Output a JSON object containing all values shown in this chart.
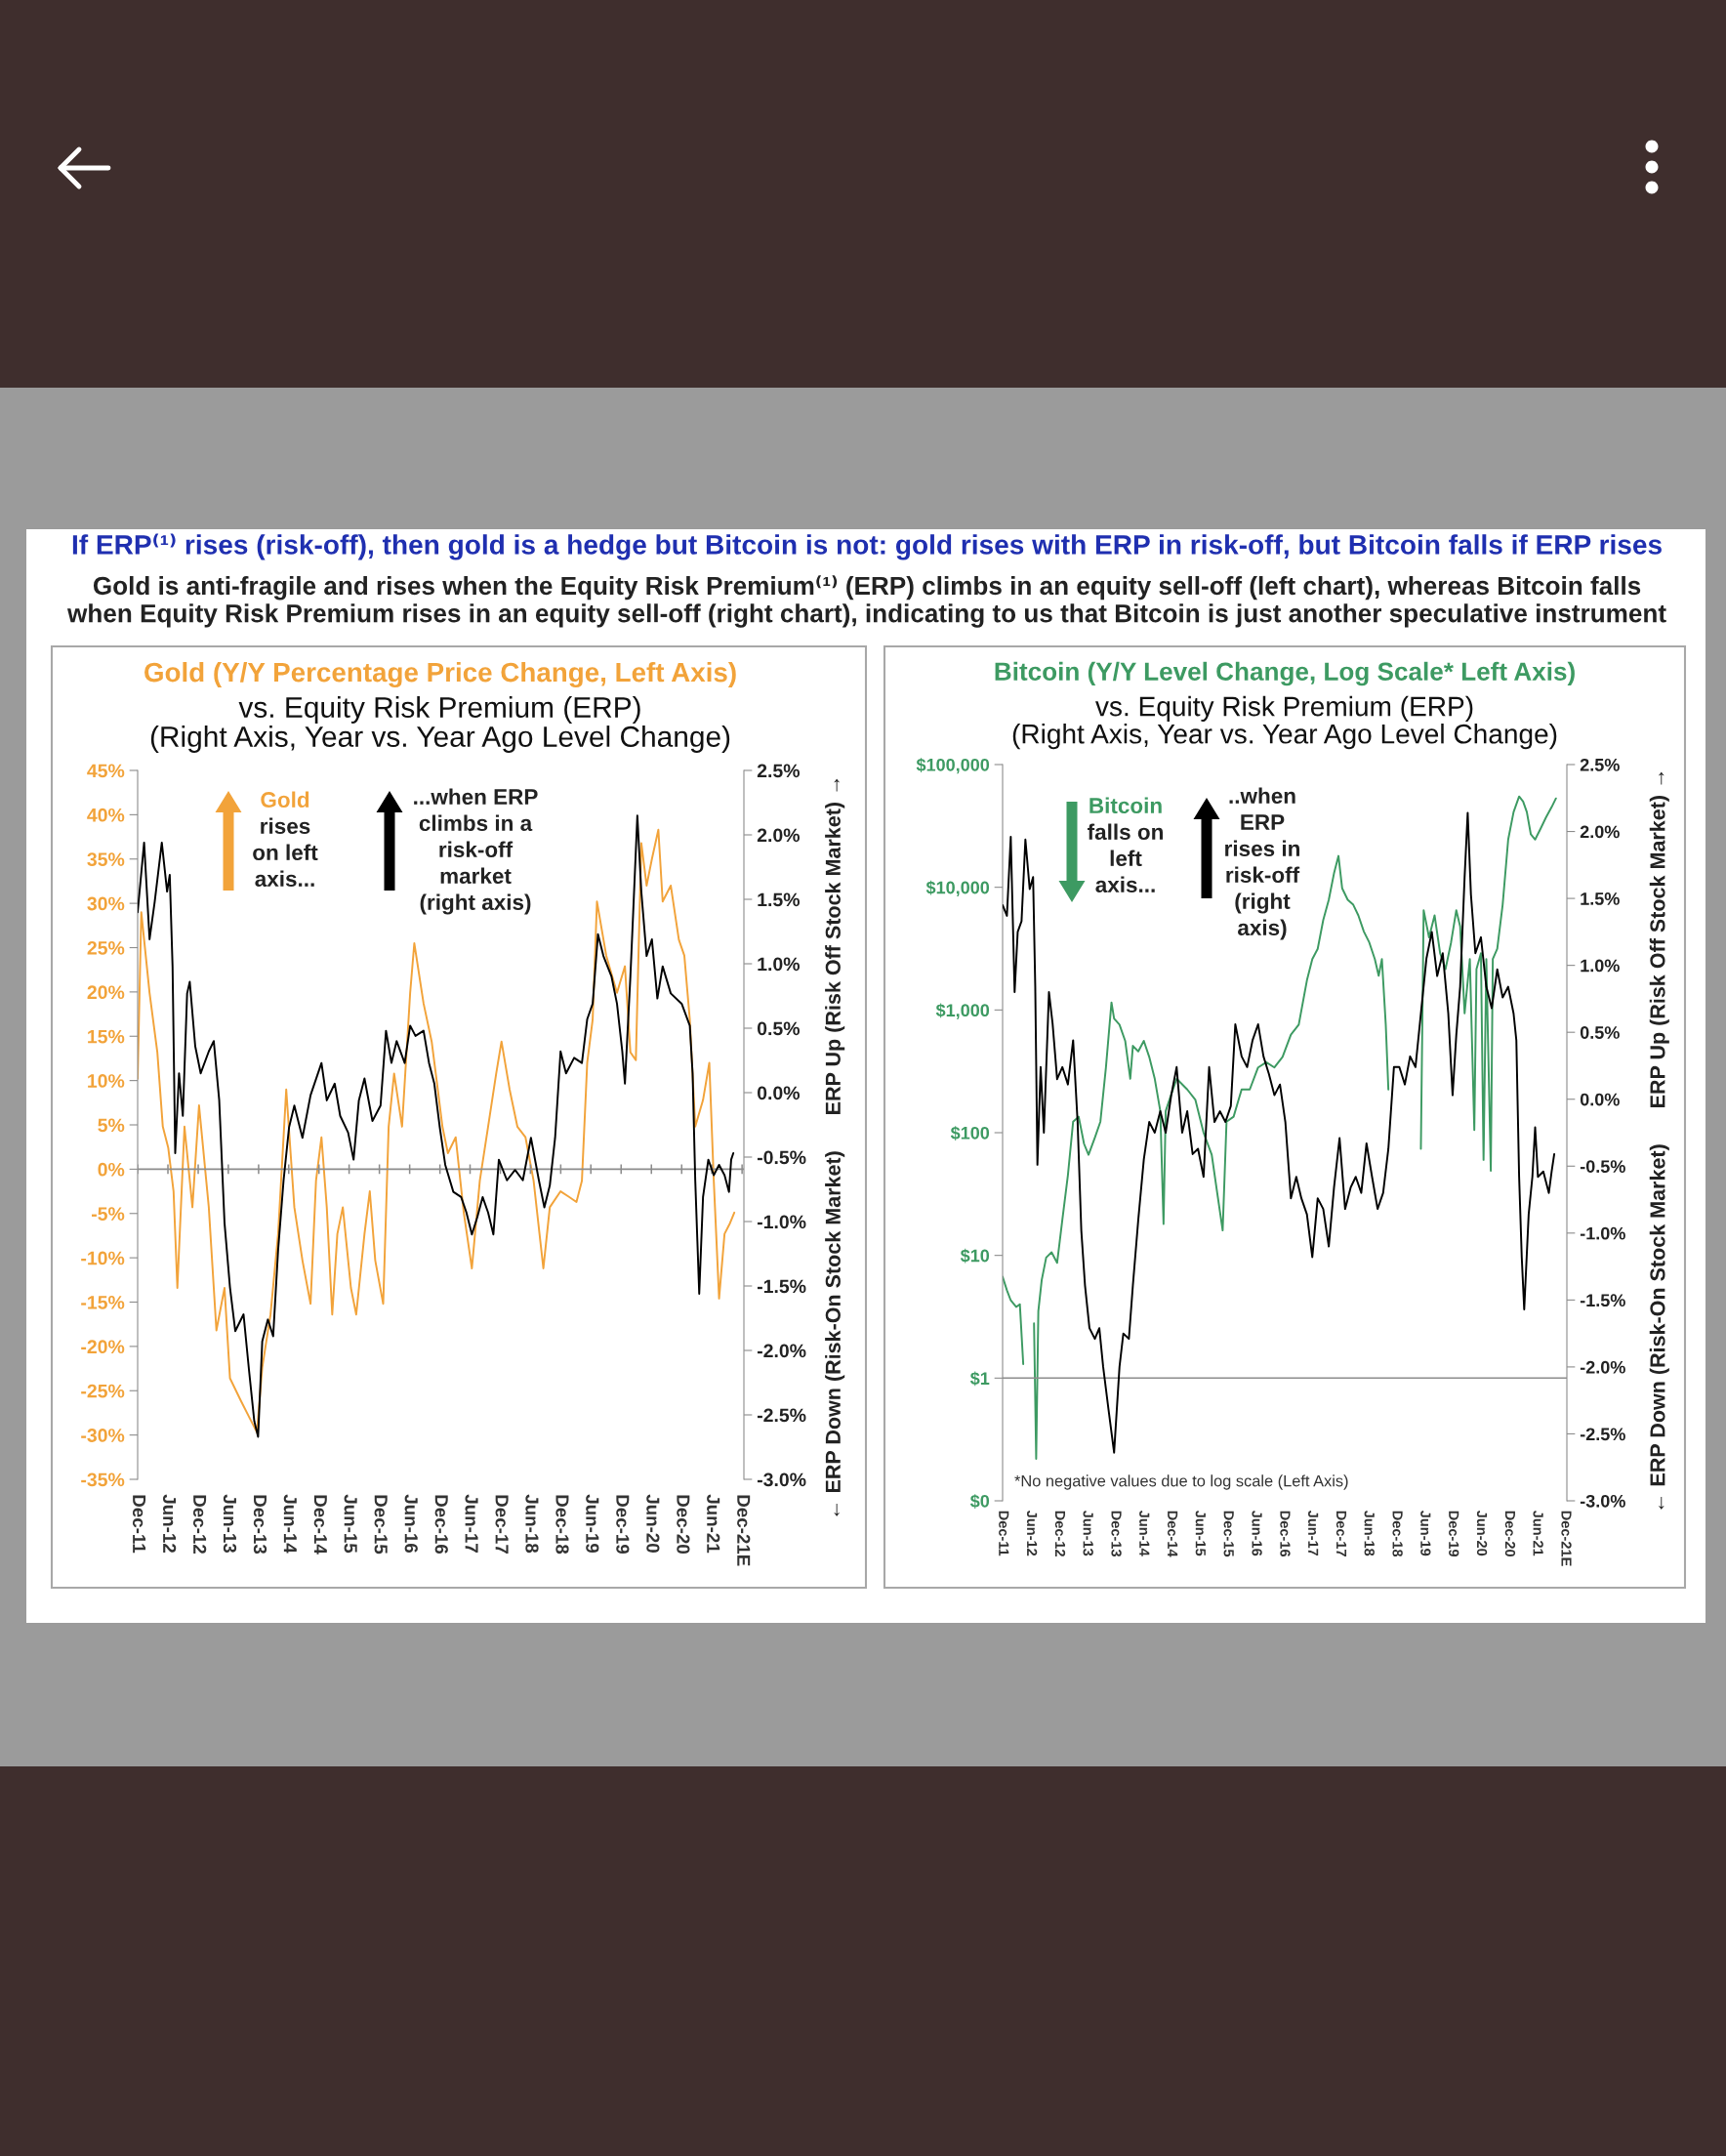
{
  "chart_data": [
    {
      "type": "other",
      "title": "If ERP⁽¹⁾ rises (risk-off), then gold is a hedge but Bitcoin is not: gold rises with ERP in risk-off, but Bitcoin falls if ERP rises",
      "subtitle": "Gold is anti-fragile and rises when the Equity Risk Premium⁽¹⁾ (ERP) climbs in an equity sell-off (left chart), whereas Bitcoin falls\nwhen Equity Risk Premium rises in an equity sell-off (right chart), indicating to us that Bitcoin is just another speculative instrument"
    },
    {
      "type": "line",
      "title": "Gold (Y/Y Percentage Price Change, Left Axis)",
      "subtitle": "vs. Equity Risk Premium (ERP)\n(Right Axis, Year vs. Year Ago Level Change)",
      "y2label": "← ERP Down (Risk-On Stock Market)      ERP Up (Risk Off Stock Market) →",
      "xlim": [
        "2011-12-01",
        "2021-12-12"
      ],
      "xticks": [
        {
          "value": "2011-12",
          "label": "Dec-11"
        },
        {
          "value": "2012-06",
          "label": "Jun-12"
        },
        {
          "value": "2012-12",
          "label": "Dec-12"
        },
        {
          "value": "2013-06",
          "label": "Jun-13"
        },
        {
          "value": "2013-12",
          "label": "Dec-13"
        },
        {
          "value": "2014-06",
          "label": "Jun-14"
        },
        {
          "value": "2014-12",
          "label": "Dec-14"
        },
        {
          "value": "2015-06",
          "label": "Jun-15"
        },
        {
          "value": "2015-12",
          "label": "Dec-15"
        },
        {
          "value": "2016-06",
          "label": "Jun-16"
        },
        {
          "value": "2016-12",
          "label": "Dec-16"
        },
        {
          "value": "2017-06",
          "label": "Jun-17"
        },
        {
          "value": "2017-12",
          "label": "Dec-17"
        },
        {
          "value": "2018-06",
          "label": "Jun-18"
        },
        {
          "value": "2018-12",
          "label": "Dec-18"
        },
        {
          "value": "2019-06",
          "label": "Jun-19"
        },
        {
          "value": "2019-12",
          "label": "Dec-19"
        },
        {
          "value": "2020-06",
          "label": "Jun-20"
        },
        {
          "value": "2020-12",
          "label": "Dec-20"
        },
        {
          "value": "2021-06",
          "label": "Jun-21"
        },
        {
          "value": "2021-12",
          "label": "Dec-21E"
        }
      ],
      "ylim": [
        -35,
        45
      ],
      "yticks": [
        {
          "value": 45,
          "label": "45%"
        },
        {
          "value": 40,
          "label": "40%"
        },
        {
          "value": 35,
          "label": "35%"
        },
        {
          "value": 30,
          "label": "30%"
        },
        {
          "value": 25,
          "label": "25%"
        },
        {
          "value": 20,
          "label": "20%"
        },
        {
          "value": 15,
          "label": "15%"
        },
        {
          "value": 10,
          "label": "10%"
        },
        {
          "value": 5,
          "label": "5%"
        },
        {
          "value": 0,
          "label": "0%"
        },
        {
          "value": -5,
          "label": "-5%"
        },
        {
          "value": -10,
          "label": "-10%"
        },
        {
          "value": -15,
          "label": "-15%"
        },
        {
          "value": -20,
          "label": "-20%"
        },
        {
          "value": -25,
          "label": "-25%"
        },
        {
          "value": -30,
          "label": "-30%"
        },
        {
          "value": -35,
          "label": "-35%"
        }
      ],
      "y2lim": [
        -3.0,
        2.5
      ],
      "y2ticks": [
        {
          "value": 2.5,
          "label": "2.5%"
        },
        {
          "value": 2.0,
          "label": "2.0%"
        },
        {
          "value": 1.5,
          "label": "1.5%"
        },
        {
          "value": 1.0,
          "label": "1.0%"
        },
        {
          "value": 0.5,
          "label": "0.5%"
        },
        {
          "value": 0.0,
          "label": "0.0%"
        },
        {
          "value": -0.5,
          "label": "-0.5%"
        },
        {
          "value": -1.0,
          "label": "-1.0%"
        },
        {
          "value": -1.5,
          "label": "-1.5%"
        },
        {
          "value": -2.0,
          "label": "-2.0%"
        },
        {
          "value": -2.5,
          "label": "-2.5%"
        },
        {
          "value": -3.0,
          "label": "-3.0%"
        }
      ],
      "ref_lines": [
        {
          "axis": "y",
          "value": 0,
          "color": "#8c8c8c"
        }
      ],
      "annotations": [
        "Gold\nrises\non left\naxis...",
        "...when ERP\nclimbs in a\nrisk-off\nmarket\n(right axis)"
      ],
      "series": [
        {
          "color": "#f2a33a",
          "x": [
            "2011-12-01",
            "2011-12-23",
            "2012-02-11",
            "2012-03-29",
            "2012-05-01",
            "2012-06-03",
            "2012-07-05",
            "2012-07-28",
            "2012-09-09",
            "2012-10-27",
            "2012-12-06",
            "2013-02-03",
            "2013-03-21",
            "2013-05-09",
            "2013-06-11",
            "2013-08-15",
            "2013-10-03",
            "2013-11-21",
            "2013-12-23",
            "2014-02-11",
            "2014-03-29",
            "2014-05-17",
            "2014-07-05",
            "2014-08-23",
            "2014-10-11",
            "2014-11-13",
            "2014-12-16",
            "2015-01-17",
            "2015-02-19",
            "2015-03-22",
            "2015-04-24",
            "2015-06-12",
            "2015-07-14",
            "2015-09-02",
            "2015-10-04",
            "2015-11-06",
            "2015-12-24",
            "2016-01-26",
            "2016-02-28",
            "2016-04-16",
            "2016-06-04",
            "2016-06-29",
            "2016-08-24",
            "2016-10-12",
            "2016-11-14",
            "2016-12-16",
            "2017-01-18",
            "2017-03-06",
            "2017-04-24",
            "2017-06-12",
            "2017-07-30",
            "2017-09-18",
            "2017-11-06",
            "2017-12-08",
            "2018-01-26",
            "2018-03-14",
            "2018-05-02",
            "2018-06-20",
            "2018-08-18",
            "2018-09-26",
            "2018-11-30",
            "2019-01-18",
            "2019-03-06",
            "2019-04-08",
            "2019-05-10",
            "2019-06-12",
            "2019-07-08",
            "2019-09-02",
            "2019-11-06",
            "2019-12-24",
            "2020-01-26",
            "2020-02-28",
            "2020-04-01",
            "2020-05-03",
            "2020-06-04",
            "2020-07-13",
            "2020-08-08",
            "2020-09-26",
            "2020-11-14",
            "2020-12-17",
            "2021-01-19",
            "2021-02-21",
            "2021-04-09",
            "2021-05-17",
            "2021-06-13",
            "2021-07-15",
            "2021-08-17",
            "2021-09-19",
            "2021-10-15"
          ],
          "values": [
            10.2,
            29.0,
            19.9,
            13.2,
            4.8,
            2.4,
            -2.5,
            -13.4,
            4.8,
            -4.3,
            7.2,
            -4.3,
            -18.2,
            -13.4,
            -23.6,
            -26.1,
            -27.9,
            -29.7,
            -22.4,
            -16.4,
            -7.3,
            9.0,
            -4.3,
            -10.3,
            -15.2,
            -1.3,
            3.6,
            -4.3,
            -16.4,
            -7.3,
            -4.3,
            -13.4,
            -16.4,
            -7.3,
            -2.5,
            -10.3,
            -15.2,
            4.8,
            10.8,
            4.8,
            19.9,
            25.5,
            18.7,
            14.4,
            9.6,
            4.8,
            1.8,
            3.6,
            -4.9,
            -11.2,
            -1.3,
            4.8,
            10.8,
            14.4,
            9.0,
            4.8,
            3.6,
            -1.3,
            -11.2,
            -4.3,
            -2.5,
            -3.1,
            -3.7,
            -1.3,
            12.0,
            16.9,
            30.2,
            24.1,
            19.9,
            22.9,
            13.2,
            12.3,
            36.8,
            32.0,
            35.0,
            38.3,
            30.2,
            32.0,
            25.9,
            24.1,
            16.9,
            4.8,
            7.8,
            12.0,
            -1.3,
            -14.6,
            -7.3,
            -6.1,
            -4.9
          ]
        },
        {
          "color": "#000000",
          "axis": "y2",
          "x": [
            "2011-12-01",
            "2012-01-09",
            "2012-02-11",
            "2012-03-13",
            "2012-04-25",
            "2012-05-27",
            "2012-06-12",
            "2012-06-29",
            "2012-07-15",
            "2012-08-07",
            "2012-08-30",
            "2012-09-25",
            "2012-10-11",
            "2012-11-13",
            "2012-12-16",
            "2013-02-03",
            "2013-03-05",
            "2013-04-07",
            "2013-05-09",
            "2013-06-11",
            "2013-07-13",
            "2013-09-01",
            "2013-10-03",
            "2013-11-05",
            "2013-11-28",
            "2013-12-23",
            "2014-01-26",
            "2014-02-27",
            "2014-03-29",
            "2014-05-01",
            "2014-06-03",
            "2014-07-05",
            "2014-08-23",
            "2014-10-11",
            "2014-12-16",
            "2015-01-17",
            "2015-03-06",
            "2015-04-08",
            "2015-05-26",
            "2015-06-28",
            "2015-07-30",
            "2015-09-02",
            "2015-10-20",
            "2015-12-08",
            "2016-01-10",
            "2016-02-12",
            "2016-03-14",
            "2016-05-02",
            "2016-06-04",
            "2016-07-06",
            "2016-08-24",
            "2016-09-26",
            "2016-10-28",
            "2016-11-30",
            "2017-01-02",
            "2017-02-20",
            "2017-04-08",
            "2017-05-10",
            "2017-06-12",
            "2017-07-14",
            "2017-08-16",
            "2017-09-18",
            "2017-10-20",
            "2017-11-22",
            "2018-01-10",
            "2018-02-28",
            "2018-04-16",
            "2018-06-04",
            "2018-07-22",
            "2018-08-24",
            "2018-09-26",
            "2018-10-28",
            "2018-11-30",
            "2019-01-02",
            "2019-02-20",
            "2019-04-08",
            "2019-05-10",
            "2019-06-12",
            "2019-07-14",
            "2019-08-16",
            "2019-10-04",
            "2019-11-06",
            "2019-12-08",
            "2019-12-24",
            "2020-01-26",
            "2020-02-12",
            "2020-03-08",
            "2020-04-01",
            "2020-05-03",
            "2020-06-04",
            "2020-07-07",
            "2020-08-08",
            "2020-09-26",
            "2020-12-01",
            "2021-01-19",
            "2021-02-05",
            "2021-02-21",
            "2021-03-17",
            "2021-04-09",
            "2021-05-11",
            "2021-06-13",
            "2021-07-15",
            "2021-08-17",
            "2021-09-13",
            "2021-09-26",
            "2021-10-09"
          ],
          "values": [
            1.4,
            1.94,
            1.19,
            1.48,
            1.94,
            1.56,
            1.69,
            0.98,
            -0.47,
            0.15,
            -0.18,
            0.77,
            0.86,
            0.36,
            0.15,
            0.32,
            0.4,
            -0.06,
            -1.01,
            -1.51,
            -1.85,
            -1.72,
            -2.14,
            -2.55,
            -2.67,
            -1.93,
            -1.76,
            -1.89,
            -1.22,
            -0.68,
            -0.27,
            -0.1,
            -0.35,
            -0.02,
            0.23,
            -0.06,
            0.07,
            -0.18,
            -0.31,
            -0.52,
            -0.06,
            0.11,
            -0.22,
            -0.1,
            0.48,
            0.23,
            0.4,
            0.23,
            0.52,
            0.44,
            0.48,
            0.23,
            0.07,
            -0.27,
            -0.56,
            -0.77,
            -0.81,
            -0.93,
            -1.1,
            -0.97,
            -0.81,
            -0.93,
            -1.1,
            -0.52,
            -0.68,
            -0.6,
            -0.68,
            -0.35,
            -0.68,
            -0.89,
            -0.72,
            -0.35,
            0.32,
            0.15,
            0.27,
            0.23,
            0.57,
            0.69,
            1.23,
            1.06,
            0.9,
            0.69,
            0.32,
            0.07,
            0.9,
            1.4,
            2.15,
            1.56,
            1.06,
            1.19,
            0.73,
            0.98,
            0.77,
            0.69,
            0.52,
            0.15,
            -0.68,
            -1.56,
            -0.81,
            -0.52,
            -0.64,
            -0.56,
            -0.64,
            -0.77,
            -0.52,
            -0.47
          ]
        }
      ]
    },
    {
      "type": "line",
      "title": "Bitcoin (Y/Y Level Change, Log Scale* Left Axis)",
      "subtitle": "vs. Equity Risk Premium (ERP)\n(Right Axis, Year vs. Year Ago Level Change)",
      "y2label": "← ERP Down (Risk-On Stock Market)      ERP Up (Risk Off Stock Market) →",
      "log": "y",
      "xlim": [
        "2011-12-01",
        "2021-12-12"
      ],
      "xticks": [
        {
          "value": "2011-12",
          "label": "Dec-11"
        },
        {
          "value": "2012-06",
          "label": "Jun-12"
        },
        {
          "value": "2012-12",
          "label": "Dec-12"
        },
        {
          "value": "2013-06",
          "label": "Jun-13"
        },
        {
          "value": "2013-12",
          "label": "Dec-13"
        },
        {
          "value": "2014-06",
          "label": "Jun-14"
        },
        {
          "value": "2014-12",
          "label": "Dec-14"
        },
        {
          "value": "2015-06",
          "label": "Jun-15"
        },
        {
          "value": "2015-12",
          "label": "Dec-15"
        },
        {
          "value": "2016-06",
          "label": "Jun-16"
        },
        {
          "value": "2016-12",
          "label": "Dec-16"
        },
        {
          "value": "2017-06",
          "label": "Jun-17"
        },
        {
          "value": "2017-12",
          "label": "Dec-17"
        },
        {
          "value": "2018-06",
          "label": "Jun-18"
        },
        {
          "value": "2018-12",
          "label": "Dec-18"
        },
        {
          "value": "2019-06",
          "label": "Jun-19"
        },
        {
          "value": "2019-12",
          "label": "Dec-19"
        },
        {
          "value": "2020-06",
          "label": "Jun-20"
        },
        {
          "value": "2020-12",
          "label": "Dec-20"
        },
        {
          "value": "2021-06",
          "label": "Jun-21"
        },
        {
          "value": "2021-12",
          "label": "Dec-21E"
        }
      ],
      "ylim": [
        0.1,
        100000
      ],
      "yticks": [
        {
          "value": 0.1,
          "label": "$0"
        },
        {
          "value": 1,
          "label": "$1"
        },
        {
          "value": 10,
          "label": "$10"
        },
        {
          "value": 100,
          "label": "$100"
        },
        {
          "value": 1000,
          "label": "$1,000"
        },
        {
          "value": 10000,
          "label": "$10,000"
        },
        {
          "value": 100000,
          "label": "$100,000"
        }
      ],
      "y2lim": [
        -3.0,
        2.5
      ],
      "y2ticks": [
        {
          "value": 2.5,
          "label": "2.5%"
        },
        {
          "value": 2.0,
          "label": "2.0%"
        },
        {
          "value": 1.5,
          "label": "1.5%"
        },
        {
          "value": 1.0,
          "label": "1.0%"
        },
        {
          "value": 0.5,
          "label": "0.5%"
        },
        {
          "value": 0.0,
          "label": "0.0%"
        },
        {
          "value": -0.5,
          "label": "-0.5%"
        },
        {
          "value": -1.0,
          "label": "-1.0%"
        },
        {
          "value": -1.5,
          "label": "-1.5%"
        },
        {
          "value": -2.0,
          "label": "-2.0%"
        },
        {
          "value": -2.5,
          "label": "-2.5%"
        },
        {
          "value": -3.0,
          "label": "-3.0%"
        }
      ],
      "ref_lines": [
        {
          "axis": "y",
          "value": 1,
          "color": "#8c8c8c"
        }
      ],
      "annotations": [
        "Bitcoin\nfalls on\nleft\naxis...",
        "..when\nERP\nrises in\nrisk-off\n(right\naxis)",
        "*No negative values due to log scale (Left Axis)"
      ],
      "series": [
        {
          "color": "#000000",
          "axis": "y2",
          "x": [
            "2011-12-01",
            "2011-12-29",
            "2012-01-23",
            "2012-02-17",
            "2012-03-08",
            "2012-04-02",
            "2012-04-27",
            "2012-05-25",
            "2012-06-16",
            "2012-06-30",
            "2012-07-14",
            "2012-08-04",
            "2012-08-25",
            "2012-09-27",
            "2012-10-21",
            "2012-11-19",
            "2012-12-23",
            "2013-01-28",
            "2013-03-03",
            "2013-04-01",
            "2013-04-25",
            "2013-05-19",
            "2013-06-17",
            "2013-07-22",
            "2013-08-20",
            "2013-09-14",
            "2013-10-19",
            "2013-11-24",
            "2013-12-29",
            "2014-01-23",
            "2014-02-28",
            "2014-03-26",
            "2014-04-30",
            "2014-06-05",
            "2014-07-10",
            "2014-08-15",
            "2014-09-20",
            "2014-10-25",
            "2014-11-30",
            "2015-01-04",
            "2015-02-09",
            "2015-03-14",
            "2015-04-18",
            "2015-05-23",
            "2015-06-28",
            "2015-08-03",
            "2015-09-07",
            "2015-10-12",
            "2015-11-17",
            "2015-12-22",
            "2016-01-20",
            "2016-03-01",
            "2016-04-06",
            "2016-05-11",
            "2016-06-16",
            "2016-07-21",
            "2016-08-25",
            "2016-09-30",
            "2016-11-05",
            "2016-12-10",
            "2017-01-15",
            "2017-02-19",
            "2017-03-24",
            "2017-04-29",
            "2017-06-03",
            "2017-07-08",
            "2017-08-13",
            "2017-09-18",
            "2017-10-22",
            "2017-11-27",
            "2018-01-02",
            "2018-02-07",
            "2018-03-12",
            "2018-04-17",
            "2018-05-21",
            "2018-06-26",
            "2018-08-01",
            "2018-09-06",
            "2018-10-10",
            "2018-11-15",
            "2018-12-20",
            "2019-01-25",
            "2019-02-28",
            "2019-04-04",
            "2019-05-09",
            "2019-06-14",
            "2019-07-19",
            "2019-08-23",
            "2019-09-28",
            "2019-11-03",
            "2019-12-01",
            "2019-12-25",
            "2020-01-19",
            "2020-02-17",
            "2020-03-08",
            "2020-03-29",
            "2020-04-27",
            "2020-06-02",
            "2020-07-07",
            "2020-08-11",
            "2020-09-16",
            "2020-10-21",
            "2020-11-26",
            "2020-12-31",
            "2021-01-18",
            "2021-02-05",
            "2021-02-22",
            "2021-03-10",
            "2021-04-08",
            "2021-05-02",
            "2021-05-20",
            "2021-06-07",
            "2021-07-12",
            "2021-08-17",
            "2021-09-04",
            "2021-09-21"
          ],
          "values": [
            1.45,
            1.37,
            1.96,
            0.8,
            1.25,
            1.33,
            1.94,
            1.57,
            1.66,
            0.84,
            -0.49,
            0.24,
            -0.25,
            0.8,
            0.56,
            0.15,
            0.24,
            0.11,
            0.44,
            -0.17,
            -0.98,
            -1.39,
            -1.71,
            -1.79,
            -1.71,
            -2.0,
            -2.32,
            -2.64,
            -2.0,
            -1.75,
            -1.79,
            -1.39,
            -0.9,
            -0.45,
            -0.17,
            -0.25,
            -0.09,
            -0.25,
            0.03,
            0.24,
            -0.25,
            -0.09,
            -0.41,
            -0.37,
            -0.58,
            0.24,
            -0.17,
            -0.09,
            -0.17,
            -0.05,
            0.56,
            0.32,
            0.24,
            0.44,
            0.56,
            0.32,
            0.19,
            0.03,
            0.11,
            -0.17,
            -0.74,
            -0.58,
            -0.74,
            -0.86,
            -1.18,
            -0.74,
            -0.82,
            -1.1,
            -0.66,
            -0.29,
            -0.82,
            -0.66,
            -0.58,
            -0.7,
            -0.33,
            -0.58,
            -0.82,
            -0.7,
            -0.37,
            0.24,
            0.24,
            0.11,
            0.32,
            0.24,
            0.64,
            1.05,
            1.25,
            0.92,
            1.09,
            0.64,
            0.03,
            0.48,
            0.84,
            1.66,
            2.14,
            1.53,
            1.09,
            1.21,
            0.84,
            0.68,
            0.97,
            0.76,
            0.84,
            0.64,
            0.44,
            -0.58,
            -1.18,
            -1.57,
            -0.86,
            -0.58,
            -0.21,
            -0.58,
            -0.54,
            -0.7,
            -0.54,
            -0.41
          ]
        },
        {
          "color": "#3d9a62",
          "x": [
            "2011-12-01",
            "2011-12-29",
            "2012-01-23",
            "2012-02-27",
            "2012-03-22",
            "2012-04-13",
            "2012-05-10",
            "2012-06-22",
            "2012-07-06",
            "2012-07-20",
            "2012-08-11",
            "2012-09-09",
            "2012-10-14",
            "2012-11-19",
            "2012-12-23",
            "2013-01-28",
            "2013-03-03",
            "2013-04-08",
            "2013-05-13",
            "2013-06-11",
            "2013-07-22",
            "2013-08-27",
            "2013-10-02",
            "2013-11-07",
            "2013-11-24",
            "2013-12-29",
            "2014-02-04",
            "2014-03-09",
            "2014-03-26",
            "2014-04-30",
            "2014-06-05",
            "2014-07-10",
            "2014-08-15",
            "2014-09-20",
            "2014-10-11",
            "2014-10-25",
            "2014-11-30",
            "2015-01-04",
            "2015-03-14",
            "2015-05-06",
            "2015-06-28",
            "2015-08-20",
            "2015-09-25",
            "2015-10-30",
            "2015-11-24",
            "2016-01-09",
            "2016-03-01",
            "2016-04-23",
            "2016-06-16",
            "2016-08-08",
            "2016-09-30",
            "2016-11-22",
            "2017-01-15",
            "2017-03-07",
            "2017-04-29",
            "2017-06-03",
            "2017-07-08",
            "2017-08-13",
            "2017-09-18",
            "2017-10-22",
            "2017-11-20",
            "2017-12-14",
            "2018-01-19",
            "2018-02-24",
            "2018-03-29",
            "2018-05-04",
            "2018-06-08",
            "2018-07-14",
            "2018-08-08",
            "2018-08-29",
            "2018-09-23",
            "2018-10-10",
            "2018-12-15",
            "2019-05-09",
            "2019-05-27",
            "2019-07-01",
            "2019-08-06",
            "2019-09-11",
            "2019-10-16",
            "2019-11-21",
            "2019-12-25",
            "2020-01-19",
            "2020-02-17",
            "2020-03-22",
            "2020-04-20",
            "2020-05-04",
            "2020-06-02",
            "2020-06-19",
            "2020-07-07",
            "2020-08-05",
            "2020-08-18",
            "2020-09-16",
            "2020-10-21",
            "2020-11-26",
            "2020-12-31",
            "2021-02-05",
            "2021-03-03",
            "2021-03-27",
            "2021-04-22",
            "2021-05-20",
            "2021-06-24",
            "2021-07-29",
            "2021-09-04",
            "2021-10-02"
          ],
          "values": [
            6.7,
            5.2,
            4.3,
            3.8,
            4.0,
            1.3,
            null,
            2.8,
            0.22,
            3.5,
            6.3,
            9.6,
            10.6,
            8.7,
            19.5,
            45,
            123,
            135,
            81,
            66,
            91,
            123,
            340,
            1150,
            850,
            760,
            560,
            275,
            510,
            460,
            560,
            415,
            275,
            150,
            18,
            150,
            205,
            275,
            225,
            185,
            100,
            66,
            32,
            16,
            123,
            135,
            225,
            225,
            340,
            375,
            340,
            415,
            630,
            760,
            1740,
            2600,
            3150,
            5400,
            7900,
            13000,
            18000,
            9800,
            7900,
            7200,
            5900,
            4350,
            3550,
            2600,
            1900,
            2600,
            760,
            225,
            null,
            74,
            6500,
            3900,
            5900,
            2900,
            2150,
            3550,
            6500,
            4800,
            940,
            2600,
            105,
            2150,
            2900,
            60,
            2600,
            49,
            2600,
            3150,
            7200,
            24500,
            41000,
            55000,
            50000,
            41000,
            27000,
            24500,
            30000,
            37000,
            45000,
            53000
          ]
        }
      ]
    }
  ]
}
